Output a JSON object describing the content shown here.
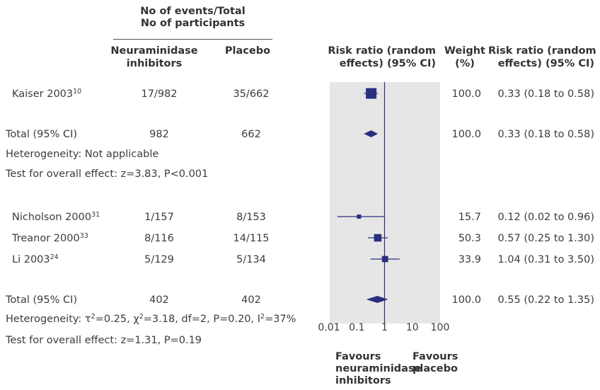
{
  "chart_data": {
    "type": "forest",
    "header": {
      "group_header_line1": "No of events/Total",
      "group_header_line2": "No of participants",
      "col_treatment_line1": "Neuraminidase",
      "col_treatment_line2": "inhibitors",
      "col_placebo": "Placebo",
      "col_rr_line1": "Risk ratio (random",
      "col_rr_line2": "effects) (95% CI)",
      "col_weight_line1": "Weight",
      "col_weight_line2": "(%)",
      "col_rr2_line1": "Risk ratio (random",
      "col_rr2_line2": "effects) (95% CI)"
    },
    "groups": [
      {
        "studies": [
          {
            "name": "Kaiser 2003",
            "ref": "10",
            "treatment": "17/982",
            "placebo": "35/662",
            "weight": "100.0",
            "ci_text": "0.33 (0.18 to 0.58)",
            "rr": 0.33,
            "lo": 0.18,
            "hi": 0.58,
            "w": 100.0
          }
        ],
        "total": {
          "label": "Total (95% CI)",
          "treatment": "982",
          "placebo": "662",
          "weight": "100.0",
          "ci_text": "0.33 (0.18 to 0.58)",
          "rr": 0.33,
          "lo": 0.18,
          "hi": 0.58
        },
        "heterogeneity": "Heterogeneity: Not applicable",
        "overall": "Test for overall effect: z=3.83, P<0.001"
      },
      {
        "studies": [
          {
            "name": "Nicholson 2000",
            "ref": "31",
            "treatment": "1/157",
            "placebo": "8/153",
            "weight": "15.7",
            "ci_text": "0.12 (0.02 to 0.96)",
            "rr": 0.12,
            "lo": 0.02,
            "hi": 0.96,
            "w": 15.7
          },
          {
            "name": "Treanor 2000",
            "ref": "33",
            "treatment": "8/116",
            "placebo": "14/115",
            "weight": "50.3",
            "ci_text": "0.57 (0.25 to 1.30)",
            "rr": 0.57,
            "lo": 0.25,
            "hi": 1.3,
            "w": 50.3
          },
          {
            "name": "Li 2003",
            "ref": "24",
            "treatment": "5/129",
            "placebo": "5/134",
            "weight": "33.9",
            "ci_text": "1.04 (0.31 to 3.50)",
            "rr": 1.04,
            "lo": 0.31,
            "hi": 3.5,
            "w": 33.9
          }
        ],
        "total": {
          "label": "Total (95% CI)",
          "treatment": "402",
          "placebo": "402",
          "weight": "100.0",
          "ci_text": "0.55 (0.22 to 1.35)",
          "rr": 0.55,
          "lo": 0.22,
          "hi": 1.35
        },
        "heterogeneity_parts": {
          "prefix": "Heterogeneity: τ",
          "tau_exp": "2",
          "mid1": "=0.25, χ",
          "chi_exp": "2",
          "mid2": "=3.18, df=2, P=0.20, I",
          "i_exp": "2",
          "suffix": "=37%"
        },
        "overall": "Test for overall effect: z=1.31, P=0.19"
      }
    ],
    "x_axis": {
      "scale": "log",
      "xlim": [
        0.01,
        100
      ],
      "ticks": [
        0.01,
        0.1,
        1,
        10,
        100
      ],
      "tick_labels": [
        "0.01",
        "0.1",
        "1",
        "10",
        "100"
      ],
      "reference_line": 1
    },
    "favours_left": [
      "Favours",
      "neuraminidase",
      "inhibitors"
    ],
    "favours_right": [
      "Favours",
      "placebo"
    ],
    "colors": {
      "marker": "#2b2f7f",
      "panel": "#e6e6e6",
      "line": "#2b2f7f"
    }
  }
}
